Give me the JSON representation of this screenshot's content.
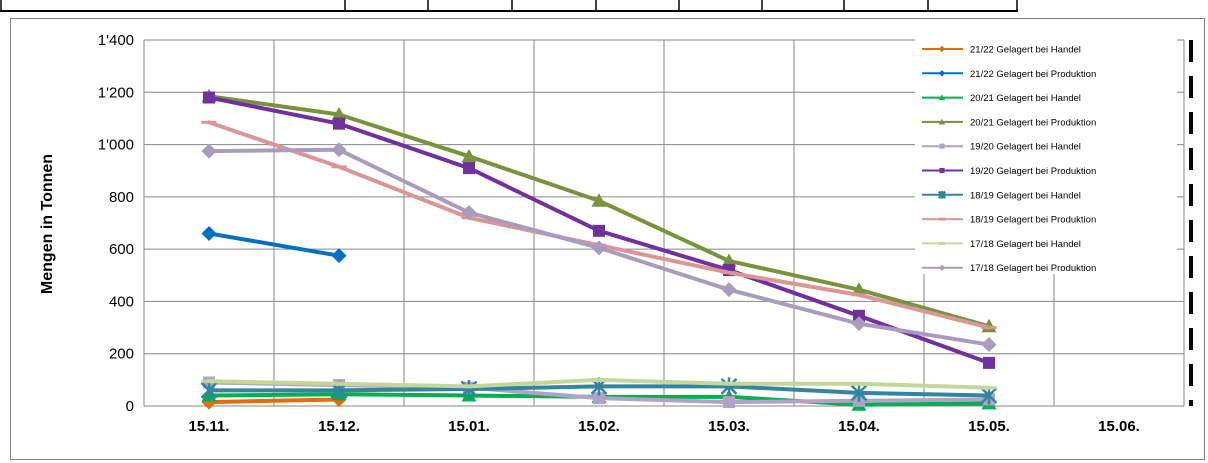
{
  "chart_data": {
    "type": "line",
    "title": "",
    "xlabel": "",
    "ylabel": "Mengen in Tonnen",
    "ylim": [
      0,
      1400
    ],
    "grid": true,
    "legend_position": "top-right",
    "categories": [
      "15.11.",
      "15.12.",
      "15.01.",
      "15.02.",
      "15.03.",
      "15.04.",
      "15.05.",
      "15.06."
    ],
    "yticks": [
      "0",
      "200",
      "400",
      "600",
      "800",
      "1'000",
      "1'200",
      "1'400"
    ],
    "series": [
      {
        "name": "21/22 Gelagert bei Handel",
        "color": "#e46c0a",
        "marker": "diamond",
        "width": 4,
        "values": [
          15,
          25,
          null,
          null,
          null,
          null,
          null,
          null
        ]
      },
      {
        "name": "21/22 Gelagert bei Produktion",
        "color": "#0070c0",
        "marker": "diamond",
        "width": 4,
        "values": [
          660,
          575,
          null,
          null,
          null,
          null,
          null,
          null
        ]
      },
      {
        "name": "20/21 Gelagert bei Handel",
        "color": "#00b050",
        "marker": "triangle",
        "width": 4,
        "values": [
          40,
          45,
          40,
          35,
          35,
          5,
          10,
          null
        ]
      },
      {
        "name": "20/21 Gelagert bei Produktion",
        "color": "#77933c",
        "marker": "triangle",
        "width": 4,
        "values": [
          1185,
          1115,
          955,
          785,
          555,
          445,
          305,
          null
        ]
      },
      {
        "name": "19/20 Gelagert bei Handel",
        "color": "#b3a2c7",
        "marker": "square",
        "width": 4,
        "values": [
          90,
          80,
          70,
          30,
          15,
          20,
          25,
          null
        ]
      },
      {
        "name": "19/20 Gelagert bei Produktion",
        "color": "#7030a0",
        "marker": "square",
        "width": 4,
        "values": [
          1180,
          1080,
          910,
          670,
          520,
          345,
          165,
          null
        ]
      },
      {
        "name": "18/19 Gelagert bei Handel",
        "color": "#31859c",
        "marker": "star",
        "width": 4,
        "values": [
          60,
          60,
          65,
          75,
          75,
          50,
          40,
          null
        ]
      },
      {
        "name": "18/19 Gelagert bei Produktion",
        "color": "#da9694",
        "marker": "dash",
        "width": 4,
        "values": [
          1085,
          915,
          720,
          615,
          510,
          425,
          300,
          null
        ]
      },
      {
        "name": "17/18 Gelagert bei Handel",
        "color": "#c4d79b",
        "marker": "dash",
        "width": 4,
        "values": [
          95,
          85,
          75,
          100,
          85,
          85,
          70,
          null
        ]
      },
      {
        "name": "17/18 Gelagert bei Produktion",
        "color": "#a99bbd",
        "marker": "diamond",
        "width": 4,
        "values": [
          975,
          980,
          740,
          605,
          445,
          315,
          235,
          null
        ]
      }
    ]
  }
}
